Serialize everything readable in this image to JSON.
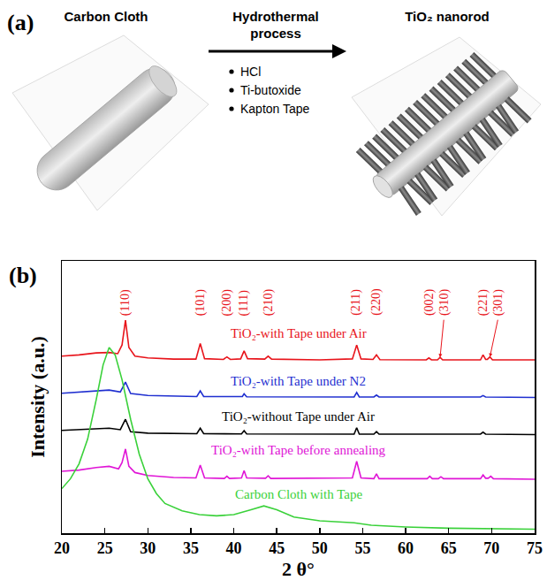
{
  "panel_a": {
    "letter": "(a)",
    "input_label": "Carbon Cloth",
    "process": "Hydrothermal process",
    "reagents": [
      "HCl",
      "Ti-butoxide",
      "Kapton Tape"
    ],
    "output_label": "TiO₂ nanorod"
  },
  "chart_data": {
    "type": "line",
    "letter": "(b)",
    "x_label": "2 θ°",
    "y_label": "Intensity (a.u.)",
    "xlim": [
      20,
      75
    ],
    "xticks": [
      20,
      25,
      30,
      35,
      40,
      45,
      50,
      55,
      60,
      65,
      70,
      75
    ],
    "ylim": [
      0,
      110
    ],
    "tick_labels": "x",
    "grid": false,
    "series": [
      {
        "name": "TiO₂-with Tape under Air",
        "color": "#e8141b",
        "x": [
          20,
          22,
          24,
          25.5,
          26.5,
          27.0,
          27.4,
          27.8,
          28.5,
          30,
          33,
          35.6,
          36.1,
          36.6,
          38.8,
          39.2,
          39.6,
          40.8,
          41.2,
          41.6,
          43.6,
          44.0,
          44.4,
          50,
          53.8,
          54.3,
          54.8,
          56.2,
          56.6,
          57.0,
          62.4,
          62.7,
          63.0,
          63.7,
          64.0,
          64.3,
          68.7,
          69.0,
          69.3,
          69.5,
          69.8,
          70.1,
          75
        ],
        "values": [
          71.5,
          72,
          72.8,
          73,
          72.5,
          76,
          86,
          75,
          71.5,
          70.8,
          70.3,
          70.3,
          76.6,
          70.5,
          70.2,
          71.2,
          70.2,
          70.4,
          73.6,
          70.5,
          70.3,
          71.5,
          70.3,
          70,
          70.4,
          76,
          70.4,
          70.2,
          72,
          70.1,
          70,
          70.8,
          70,
          70,
          71,
          70,
          70,
          72,
          70.2,
          70.2,
          71.2,
          70,
          70
        ]
      },
      {
        "name": "TiO₂-with Tape under N2",
        "color": "#1f2fd0",
        "x": [
          20,
          23,
          25.5,
          26.8,
          27.4,
          28,
          30,
          35.7,
          36.1,
          36.5,
          41,
          41.2,
          41.5,
          54.0,
          54.3,
          54.6,
          56.3,
          56.6,
          56.9,
          68.7,
          69,
          69.3,
          75
        ],
        "values": [
          56.5,
          57.2,
          57.8,
          57,
          61,
          56.4,
          55.6,
          55.2,
          57.5,
          55.2,
          55.2,
          56.3,
          55.1,
          55,
          56.8,
          55,
          55,
          55.8,
          55,
          55,
          55.6,
          55,
          54.8
        ]
      },
      {
        "name": "TiO₂-without Tape under Air",
        "color": "#000000",
        "x": [
          20,
          23,
          25.5,
          26.8,
          27.4,
          28,
          30,
          35.7,
          36.1,
          36.5,
          40.9,
          41.2,
          41.5,
          54.0,
          54.3,
          54.6,
          56.3,
          56.6,
          56.9,
          68.7,
          69,
          69.3,
          75
        ],
        "values": [
          41.5,
          42,
          42.4,
          41.8,
          46,
          41,
          40.4,
          40.2,
          42.4,
          40.2,
          40.1,
          41.4,
          40.1,
          40,
          42.6,
          40,
          40,
          41,
          40,
          40,
          40.8,
          40,
          39.8
        ]
      },
      {
        "name": "TiO₂-with Tape before annealing",
        "color": "#e015d6",
        "x": [
          20,
          22,
          24,
          25.5,
          26.6,
          27.0,
          27.4,
          27.8,
          28.5,
          30,
          33,
          35.6,
          36.1,
          36.6,
          38.9,
          39.2,
          39.5,
          40.9,
          41.2,
          41.5,
          43.7,
          44.0,
          44.3,
          53.8,
          54.3,
          54.8,
          56.3,
          56.6,
          56.9,
          62.5,
          62.8,
          63.1,
          63.8,
          64.1,
          64.4,
          68.7,
          69.0,
          69.3,
          69.6,
          69.9,
          70.2,
          75
        ],
        "values": [
          25,
          25.5,
          26.5,
          27,
          26,
          28.5,
          34,
          27,
          24.5,
          23.3,
          22.5,
          22.3,
          27.5,
          22.3,
          22.1,
          23,
          22.1,
          22.3,
          25.3,
          22.3,
          22.2,
          23.2,
          22.1,
          22.3,
          29,
          22.3,
          22,
          24,
          22,
          22,
          23,
          22,
          22,
          22.8,
          22,
          22,
          23.5,
          22.2,
          22.2,
          23,
          22,
          21.8
        ]
      },
      {
        "name": "Carbon Cloth with Tape",
        "color": "#3ad13a",
        "x": [
          20,
          21,
          22,
          23,
          24,
          24.8,
          25.5,
          26.2,
          27,
          28,
          29,
          30,
          31,
          32,
          34,
          36,
          38,
          40,
          42,
          43.5,
          45,
          47,
          50,
          53,
          54,
          56,
          60,
          65,
          70,
          75
        ],
        "values": [
          18,
          22,
          28,
          38,
          54,
          68,
          75,
          72,
          62,
          46,
          32,
          22,
          16,
          12,
          9,
          7.5,
          7,
          7.5,
          9.5,
          11,
          9.5,
          6.5,
          5,
          4.5,
          4.2,
          3.2,
          2.5,
          2,
          1.8,
          1.6
        ]
      }
    ],
    "annotations": [
      {
        "text": "(110)",
        "x": 27.4
      },
      {
        "text": "(101)",
        "x": 36.1
      },
      {
        "text": "(200)",
        "x": 39.2
      },
      {
        "text": "(111)",
        "x": 41.2
      },
      {
        "text": "(210)",
        "x": 44.0
      },
      {
        "text": "(211)",
        "x": 54.3
      },
      {
        "text": "(220)",
        "x": 56.6
      },
      {
        "text": "(002)",
        "x": 62.7
      },
      {
        "text": "(310)",
        "x": 64.0
      },
      {
        "text": "(221)",
        "x": 69.0
      },
      {
        "text": "(301)",
        "x": 69.8
      }
    ]
  }
}
